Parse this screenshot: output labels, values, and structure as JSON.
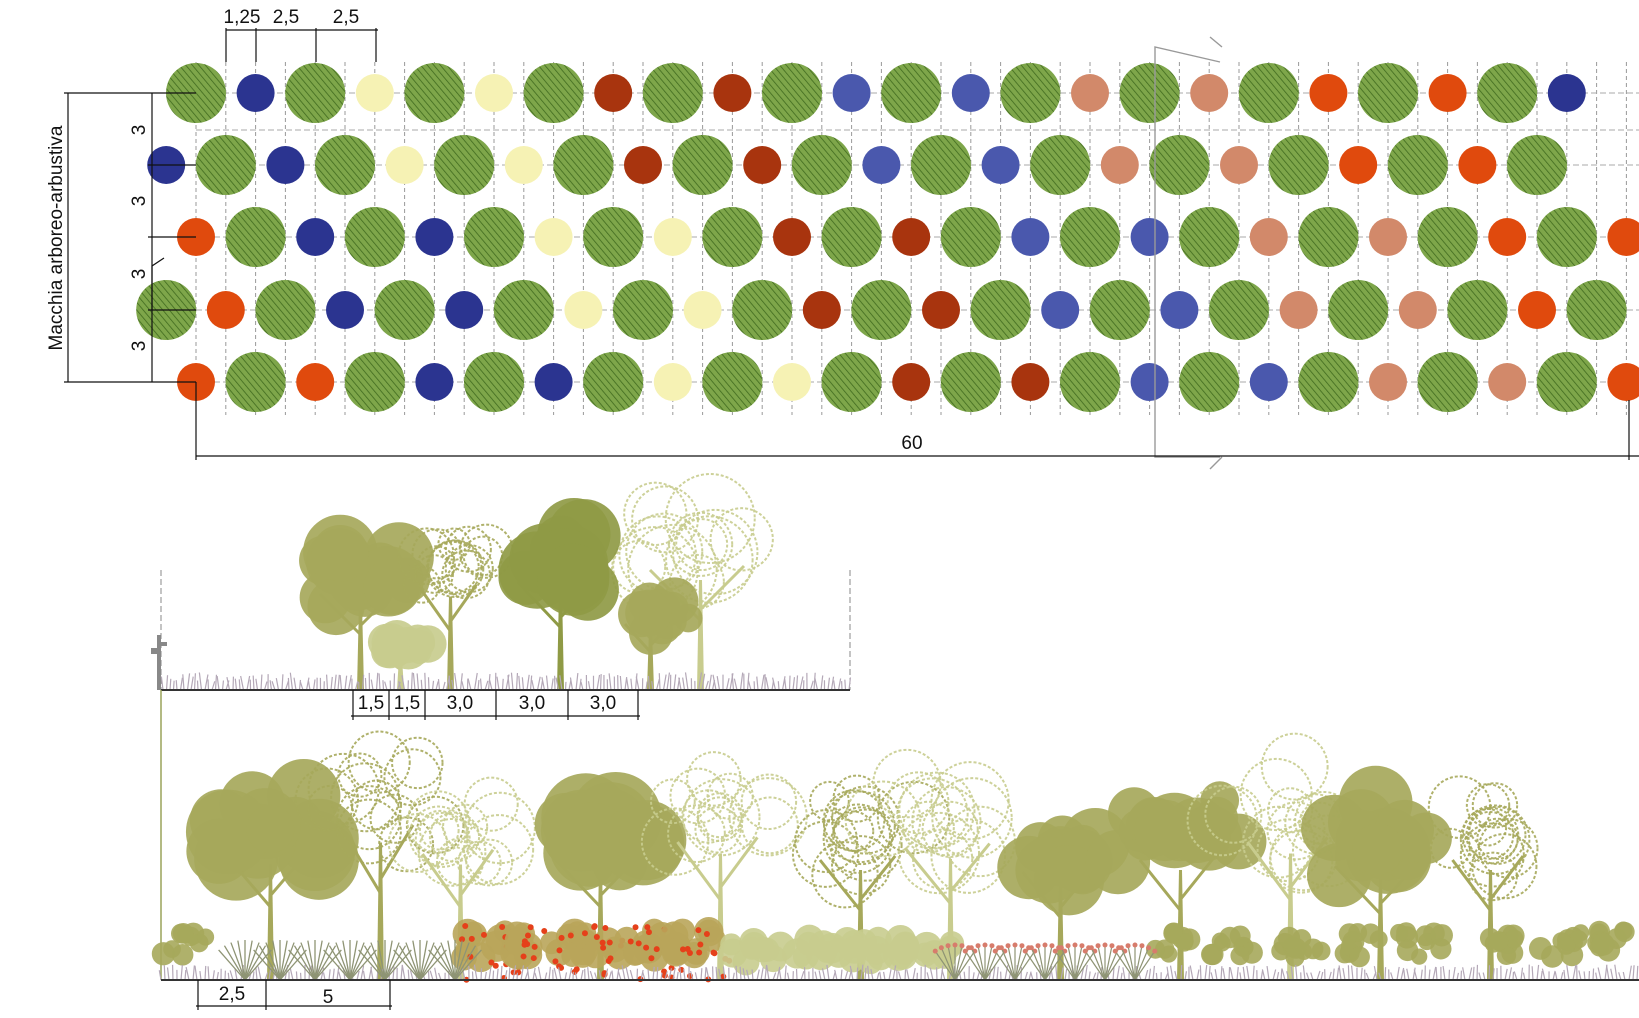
{
  "plan": {
    "side_label": "Macchia arboreo-arbustiva",
    "top_dims": [
      "1,25",
      "2,5",
      "2,5"
    ],
    "row_dims": [
      "3",
      "3",
      "3",
      "3"
    ],
    "length_dim": "60",
    "rows": [
      [
        "T",
        "navy",
        "T",
        "cream",
        "T",
        "cream",
        "T",
        "brown",
        "T",
        "brown",
        "T",
        "blue",
        "T",
        "blue",
        "T",
        "salmon",
        "T",
        "salmon",
        "T",
        "orange",
        "T",
        "orange",
        "T",
        "navy"
      ],
      [
        "navy",
        "T",
        "navy",
        "T",
        "cream",
        "T",
        "cream",
        "T",
        "brown",
        "T",
        "brown",
        "T",
        "blue",
        "T",
        "blue",
        "T",
        "salmon",
        "T",
        "salmon",
        "T",
        "orange",
        "T",
        "orange",
        "T"
      ],
      [
        "orange",
        "T",
        "navy",
        "T",
        "navy",
        "T",
        "cream",
        "T",
        "cream",
        "T",
        "brown",
        "T",
        "brown",
        "T",
        "blue",
        "T",
        "blue",
        "T",
        "salmon",
        "T",
        "salmon",
        "T",
        "orange",
        "T",
        "orange"
      ],
      [
        "T",
        "orange",
        "T",
        "navy",
        "T",
        "navy",
        "T",
        "cream",
        "T",
        "cream",
        "T",
        "brown",
        "T",
        "brown",
        "T",
        "blue",
        "T",
        "blue",
        "T",
        "salmon",
        "T",
        "salmon",
        "T",
        "orange",
        "T"
      ],
      [
        "orange",
        "T",
        "orange",
        "T",
        "navy",
        "T",
        "navy",
        "T",
        "cream",
        "T",
        "cream",
        "T",
        "brown",
        "T",
        "brown",
        "T",
        "blue",
        "T",
        "blue",
        "T",
        "salmon",
        "T",
        "salmon",
        "T",
        "orange"
      ]
    ]
  },
  "colors": {
    "tree": "#6f9a3c",
    "tree_hatch": "#3f6a1e",
    "navy": "#2b3490",
    "cream": "#f6f2b4",
    "brown": "#a8340e",
    "blue": "#4a58ad",
    "salmon": "#d2896a",
    "orange": "#e04a0d",
    "foliage": "#a6a85b",
    "foliage_dark": "#8f9a45",
    "foliage_light": "#c8cc8e",
    "flower_red": "#e5401a",
    "flower_pink": "#d77c6c",
    "grass": "#b4a8b7"
  },
  "section_small": {
    "dims": [
      "1,5",
      "1,5",
      "3,0",
      "3,0",
      "3,0"
    ]
  },
  "section_large": {
    "dims": [
      "2,5",
      "5"
    ]
  }
}
